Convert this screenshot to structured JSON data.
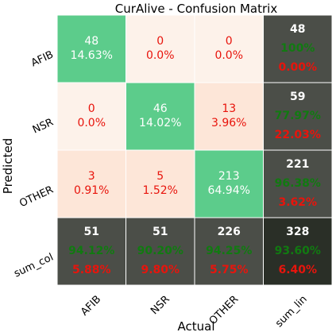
{
  "chart_data": {
    "type": "heatmap",
    "title": "CurAlive - Confusion Matrix",
    "xlabel": "Actual",
    "ylabel": "Predicted",
    "x_tick_labels": [
      "AFIB",
      "NSR",
      "OTHER",
      "sum_lin"
    ],
    "y_tick_labels": [
      "AFIB",
      "NSR",
      "OTHER",
      "sum_col"
    ],
    "cells": [
      [
        {
          "count": "48",
          "percent": "14.63%"
        },
        {
          "count": "0",
          "percent": "0.0%"
        },
        {
          "count": "0",
          "percent": "0.0%"
        },
        {
          "count": "48",
          "correct": "100%",
          "error": "0.00%"
        }
      ],
      [
        {
          "count": "0",
          "percent": "0.0%"
        },
        {
          "count": "46",
          "percent": "14.02%"
        },
        {
          "count": "13",
          "percent": "3.96%"
        },
        {
          "count": "59",
          "correct": "77.97%",
          "error": "22.03%"
        }
      ],
      [
        {
          "count": "3",
          "percent": "0.91%"
        },
        {
          "count": "5",
          "percent": "1.52%"
        },
        {
          "count": "213",
          "percent": "64.94%"
        },
        {
          "count": "221",
          "correct": "96.38%",
          "error": "3.62%"
        }
      ],
      [
        {
          "count": "51",
          "correct": "94.12%",
          "error": "5.88%"
        },
        {
          "count": "51",
          "correct": "90.20%",
          "error": "9.80%"
        },
        {
          "count": "226",
          "correct": "94.25%",
          "error": "5.75%"
        },
        {
          "count": "328",
          "correct": "93.60%",
          "error": "6.40%"
        }
      ]
    ],
    "colors": {
      "diagonal": "#5ccc8b",
      "offdiag_light": "#fdf2ea",
      "offdiag_warm": "#fde6d8",
      "summary": "#4b4e48",
      "total": "#2a2f27",
      "white_text": "#ffffff",
      "red_text": "#e8140c",
      "green_text": "#117a11",
      "grid_line": "#ffffff"
    }
  }
}
